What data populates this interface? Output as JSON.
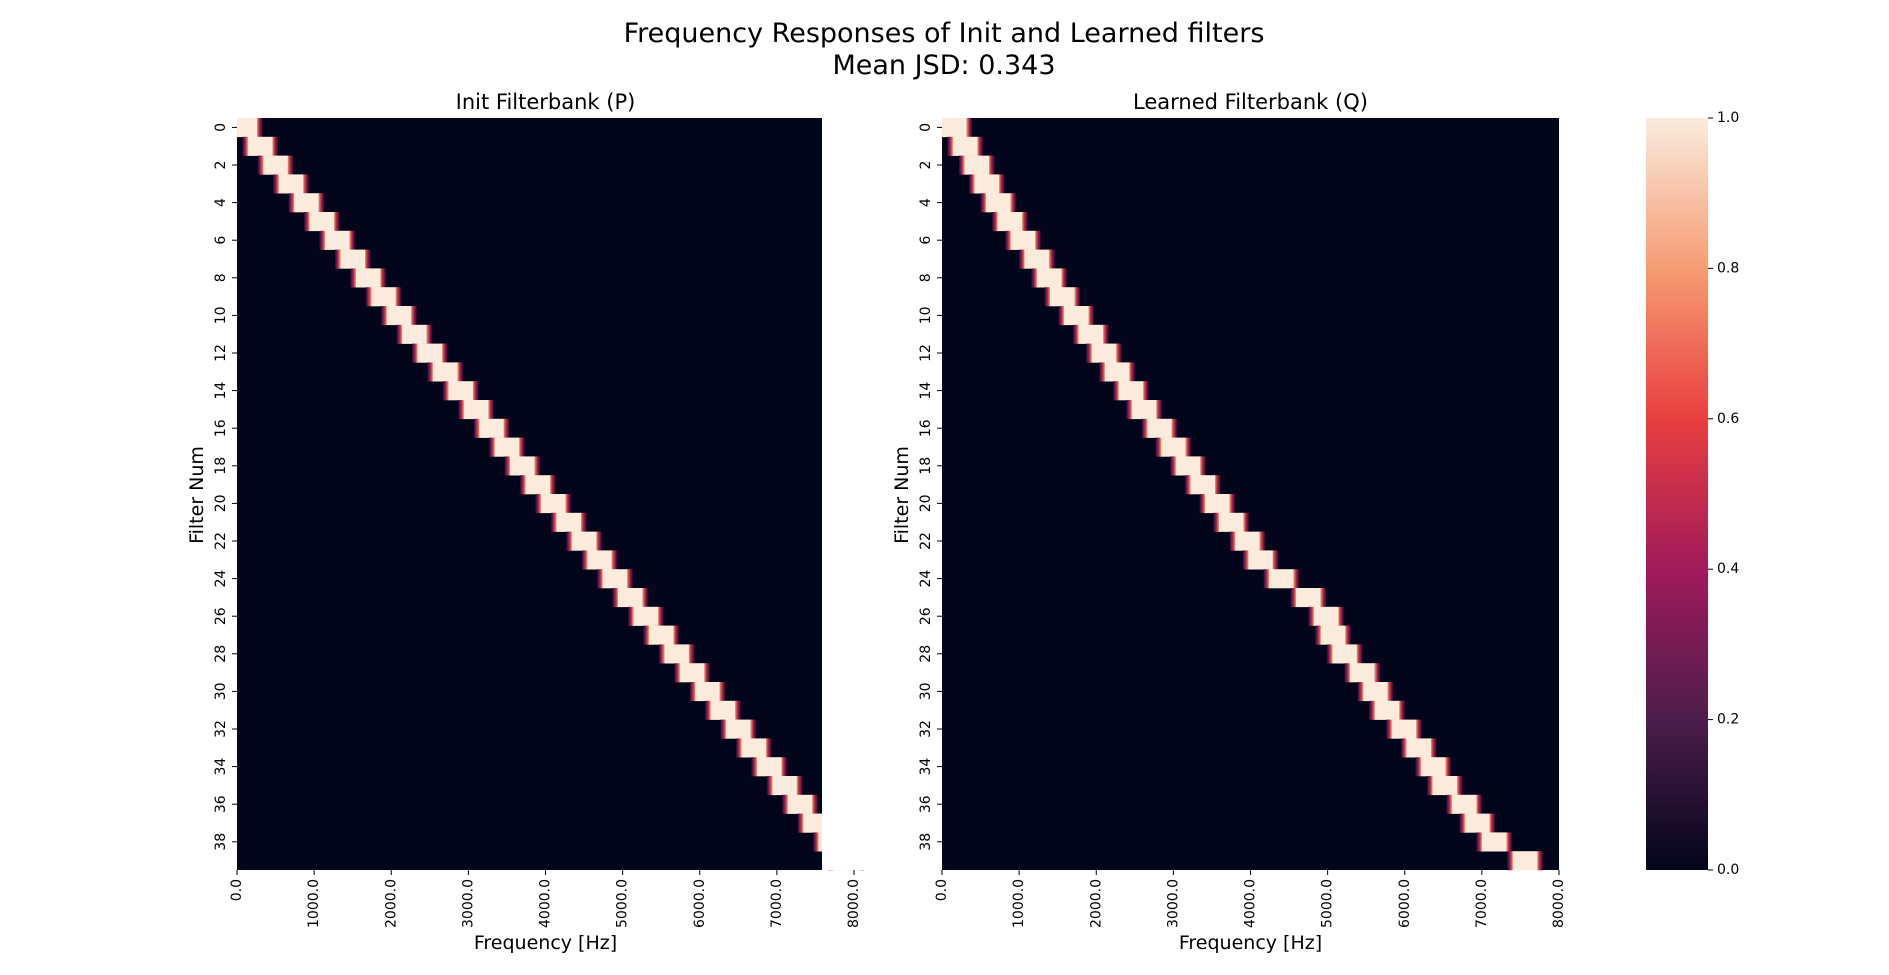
{
  "figure": {
    "title_line1": "Frequency Responses of Init and Learned filters",
    "title_line2": "Mean JSD: 0.343"
  },
  "chart_data": [
    {
      "type": "heatmap",
      "title": "Init Filterbank (P)",
      "xlabel": "Frequency [Hz]",
      "ylabel": "Filter Num",
      "x_range": [
        0,
        8000
      ],
      "x_tick_labels": [
        "0.0",
        "1000.0",
        "2000.0",
        "3000.0",
        "4000.0",
        "5000.0",
        "6000.0",
        "7000.0",
        "8000.0"
      ],
      "x_tick_values": [
        0,
        1000,
        2000,
        3000,
        4000,
        5000,
        6000,
        7000,
        8000
      ],
      "num_filters": 40,
      "y_tick_labels": [
        "0",
        "2",
        "4",
        "6",
        "8",
        "10",
        "12",
        "14",
        "16",
        "18",
        "20",
        "22",
        "24",
        "26",
        "28",
        "30",
        "32",
        "34",
        "36",
        "38"
      ],
      "y_tick_values": [
        0,
        2,
        4,
        6,
        8,
        10,
        12,
        14,
        16,
        18,
        20,
        22,
        24,
        26,
        28,
        30,
        32,
        34,
        36,
        38
      ],
      "value_range": [
        0.0,
        1.0
      ],
      "filter_centers_hz": [
        100,
        300,
        500,
        700,
        900,
        1100,
        1300,
        1500,
        1700,
        1900,
        2100,
        2300,
        2500,
        2700,
        2900,
        3100,
        3300,
        3500,
        3700,
        3900,
        4100,
        4300,
        4500,
        4700,
        4900,
        5100,
        5300,
        5500,
        5700,
        5900,
        6100,
        6300,
        6500,
        6700,
        6900,
        7100,
        7300,
        7500,
        7700,
        7900
      ],
      "filter_bandwidth_hz": 320
    },
    {
      "type": "heatmap",
      "title": "Learned Filterbank (Q)",
      "xlabel": "Frequency [Hz]",
      "ylabel": "Filter Num",
      "x_range": [
        0,
        8000
      ],
      "x_tick_labels": [
        "0.0",
        "1000.0",
        "2000.0",
        "3000.0",
        "4000.0",
        "5000.0",
        "6000.0",
        "7000.0",
        "8000.0"
      ],
      "x_tick_values": [
        0,
        1000,
        2000,
        3000,
        4000,
        5000,
        6000,
        7000,
        8000
      ],
      "num_filters": 40,
      "y_tick_labels": [
        "0",
        "2",
        "4",
        "6",
        "8",
        "10",
        "12",
        "14",
        "16",
        "18",
        "20",
        "22",
        "24",
        "26",
        "28",
        "30",
        "32",
        "34",
        "36",
        "38"
      ],
      "y_tick_values": [
        0,
        2,
        4,
        6,
        8,
        10,
        12,
        14,
        16,
        18,
        20,
        22,
        24,
        26,
        28,
        30,
        32,
        34,
        36,
        38
      ],
      "value_range": [
        0.0,
        1.0
      ],
      "filter_centers_hz": [
        160,
        300,
        450,
        580,
        730,
        880,
        1050,
        1230,
        1390,
        1560,
        1740,
        1930,
        2100,
        2270,
        2450,
        2620,
        2820,
        3000,
        3190,
        3380,
        3570,
        3750,
        3960,
        4130,
        4400,
        4750,
        4980,
        5070,
        5220,
        5450,
        5620,
        5770,
        5990,
        6180,
        6370,
        6520,
        6770,
        6940,
        7160,
        7560
      ],
      "filter_bandwidth_hz": 320
    }
  ],
  "colorbar": {
    "range": [
      0.0,
      1.0
    ],
    "tick_labels": [
      "0.0",
      "0.2",
      "0.4",
      "0.6",
      "0.8",
      "1.0"
    ],
    "tick_values": [
      0.0,
      0.2,
      0.4,
      0.6,
      0.8,
      1.0
    ],
    "colormap": "rocket",
    "color_stops": [
      "#03051a",
      "#4c1d4b",
      "#a11a5b",
      "#e83f3f",
      "#f69c73",
      "#faebdd"
    ]
  }
}
